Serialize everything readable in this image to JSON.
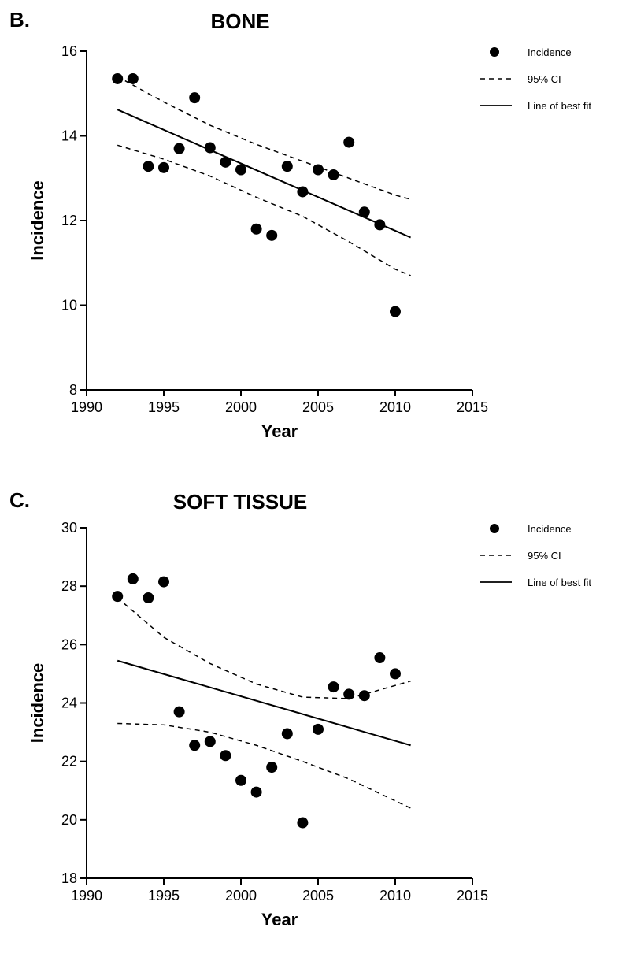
{
  "panels": [
    {
      "label": "B.",
      "title": "BONE",
      "type": "scatter-with-fit",
      "xlabel": "Year",
      "ylabel": "Incidence",
      "xlim": [
        1990,
        2015
      ],
      "ylim": [
        8,
        16
      ],
      "xtick_step": 5,
      "ytick_step": 2,
      "xticks": [
        1990,
        1995,
        2000,
        2005,
        2010,
        2015
      ],
      "yticks": [
        8,
        10,
        12,
        14,
        16
      ],
      "background_color": "#ffffff",
      "axis_color": "#000000",
      "marker_color": "#000000",
      "marker_size": 7,
      "line_color": "#000000",
      "line_width": 2,
      "ci_dash": "6,5",
      "ci_width": 1.5,
      "title_fontsize": 26,
      "label_fontsize": 22,
      "tick_fontsize": 18,
      "legend": {
        "incidence": "Incidence",
        "ci": "95% CI",
        "fit": "Line of best fit",
        "fontsize": 13
      },
      "data": {
        "year": [
          1992,
          1993,
          1994,
          1995,
          1996,
          1997,
          1998,
          1999,
          2000,
          2001,
          2002,
          2003,
          2004,
          2005,
          2006,
          2007,
          2008,
          2009,
          2010
        ],
        "incidence": [
          15.35,
          15.35,
          13.28,
          13.25,
          13.7,
          14.9,
          13.72,
          13.38,
          13.2,
          11.8,
          11.65,
          13.28,
          12.68,
          13.2,
          13.08,
          13.85,
          12.2,
          11.9,
          9.85
        ]
      },
      "fit_line": {
        "x1": 1992,
        "y1": 14.62,
        "x2": 2011,
        "y2": 11.6
      },
      "ci_upper": [
        [
          1992,
          15.4
        ],
        [
          1995,
          14.8
        ],
        [
          1998,
          14.25
        ],
        [
          2001,
          13.8
        ],
        [
          2004,
          13.4
        ],
        [
          2007,
          13.0
        ],
        [
          2010,
          12.6
        ],
        [
          2011,
          12.5
        ]
      ],
      "ci_lower": [
        [
          1992,
          13.78
        ],
        [
          1995,
          13.45
        ],
        [
          1998,
          13.05
        ],
        [
          2001,
          12.55
        ],
        [
          2004,
          12.1
        ],
        [
          2007,
          11.5
        ],
        [
          2010,
          10.85
        ],
        [
          2011,
          10.7
        ]
      ]
    },
    {
      "label": "C.",
      "title": "SOFT TISSUE",
      "type": "scatter-with-fit",
      "xlabel": "Year",
      "ylabel": "Incidence",
      "xlim": [
        1990,
        2015
      ],
      "ylim": [
        18,
        30
      ],
      "xtick_step": 5,
      "ytick_step": 2,
      "xticks": [
        1990,
        1995,
        2000,
        2005,
        2010,
        2015
      ],
      "yticks": [
        18,
        20,
        22,
        24,
        26,
        28,
        30
      ],
      "background_color": "#ffffff",
      "axis_color": "#000000",
      "marker_color": "#000000",
      "marker_size": 7,
      "line_color": "#000000",
      "line_width": 2,
      "ci_dash": "6,5",
      "ci_width": 1.5,
      "title_fontsize": 26,
      "label_fontsize": 22,
      "tick_fontsize": 18,
      "legend": {
        "incidence": "Incidence",
        "ci": "95% CI",
        "fit": "Line of best fit",
        "fontsize": 13
      },
      "data": {
        "year": [
          1992,
          1993,
          1994,
          1995,
          1996,
          1997,
          1998,
          1999,
          2000,
          2001,
          2002,
          2003,
          2004,
          2005,
          2006,
          2007,
          2008,
          2009,
          2010
        ],
        "incidence": [
          27.65,
          28.25,
          27.6,
          28.15,
          23.7,
          22.55,
          22.68,
          22.2,
          21.35,
          20.95,
          21.8,
          22.95,
          19.9,
          23.1,
          24.55,
          24.3,
          24.25,
          25.55,
          25.0
        ]
      },
      "fit_line": {
        "x1": 1992,
        "y1": 25.45,
        "x2": 2011,
        "y2": 22.55
      },
      "ci_upper": [
        [
          1992,
          27.6
        ],
        [
          1995,
          26.25
        ],
        [
          1998,
          25.35
        ],
        [
          2001,
          24.65
        ],
        [
          2004,
          24.2
        ],
        [
          2007,
          24.15
        ],
        [
          2010,
          24.6
        ],
        [
          2011,
          24.75
        ]
      ],
      "ci_lower": [
        [
          1992,
          23.3
        ],
        [
          1995,
          23.25
        ],
        [
          1998,
          23.0
        ],
        [
          2001,
          22.55
        ],
        [
          2004,
          22.0
        ],
        [
          2007,
          21.4
        ],
        [
          2010,
          20.65
        ],
        [
          2011,
          20.4
        ]
      ]
    }
  ]
}
